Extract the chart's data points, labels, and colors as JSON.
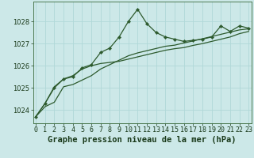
{
  "title": "Graphe pression niveau de la mer (hPa)",
  "bg_color": "#cce8e8",
  "grid_color": "#b0d8d8",
  "line_color": "#2d5a2d",
  "marker_color": "#2d5a2d",
  "x_hours": [
    0,
    1,
    2,
    3,
    4,
    5,
    6,
    7,
    8,
    9,
    10,
    11,
    12,
    13,
    14,
    15,
    16,
    17,
    18,
    19,
    20,
    21,
    22,
    23
  ],
  "line1": [
    1023.7,
    1024.3,
    1025.0,
    1025.4,
    1025.5,
    1025.9,
    1026.05,
    1026.6,
    1026.8,
    1027.3,
    1028.0,
    1028.55,
    1027.9,
    1027.5,
    1027.3,
    1027.2,
    1027.1,
    1027.15,
    1027.2,
    1027.3,
    1027.8,
    1027.55,
    1027.8,
    1027.7
  ],
  "line2": [
    1023.7,
    1024.3,
    1025.05,
    1025.4,
    1025.55,
    1025.85,
    1026.0,
    1026.1,
    1026.15,
    1026.2,
    1026.3,
    1026.4,
    1026.5,
    1026.6,
    1026.7,
    1026.77,
    1026.82,
    1026.92,
    1027.0,
    1027.1,
    1027.2,
    1027.3,
    1027.45,
    1027.55
  ],
  "line3": [
    1023.7,
    1024.15,
    1024.35,
    1025.05,
    1025.15,
    1025.35,
    1025.55,
    1025.85,
    1026.05,
    1026.25,
    1026.45,
    1026.58,
    1026.68,
    1026.78,
    1026.88,
    1026.93,
    1027.03,
    1027.12,
    1027.22,
    1027.32,
    1027.42,
    1027.52,
    1027.62,
    1027.67
  ],
  "yticks": [
    1024,
    1025,
    1026,
    1027,
    1028
  ],
  "ylim": [
    1023.4,
    1028.9
  ],
  "xlim": [
    -0.3,
    23.3
  ],
  "xtick_labels": [
    "0",
    "1",
    "2",
    "3",
    "4",
    "5",
    "6",
    "7",
    "8",
    "9",
    "10",
    "11",
    "12",
    "13",
    "14",
    "15",
    "16",
    "17",
    "18",
    "19",
    "20",
    "21",
    "22",
    "23"
  ],
  "title_fontsize": 7.5,
  "tick_fontsize": 6
}
